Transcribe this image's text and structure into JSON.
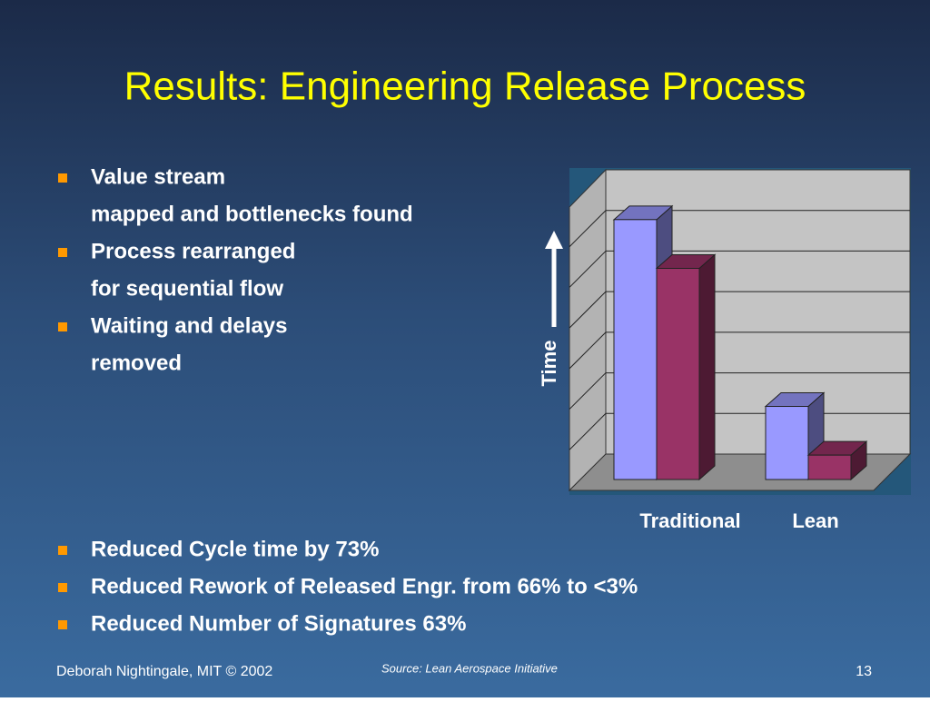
{
  "title": "Results: Engineering Release Process",
  "bullets": [
    {
      "lines": [
        "Value stream",
        "mapped and bottlenecks found"
      ]
    },
    {
      "lines": [
        "Process rearranged",
        "for sequential flow"
      ]
    },
    {
      "lines": [
        "Waiting and delays",
        "removed"
      ]
    }
  ],
  "results": [
    "Reduced Cycle time by 73%",
    "Reduced Rework of Released Engr. from 66% to <3%",
    "Reduced Number of Signatures 63%"
  ],
  "footer": {
    "author": "Deborah Nightingale, MIT © 2002",
    "source": "Source: Lean Aerospace Initiative",
    "page": "13"
  },
  "chart_data": {
    "type": "bar3d",
    "ylabel": "Time",
    "categories": [
      "Traditional",
      "Lean"
    ],
    "series": [
      {
        "color": "#9999ff",
        "values": [
          6.4,
          1.8
        ]
      },
      {
        "color": "#993366",
        "values": [
          5.2,
          0.6
        ]
      }
    ],
    "ylim": [
      0,
      7
    ],
    "grid": true
  }
}
